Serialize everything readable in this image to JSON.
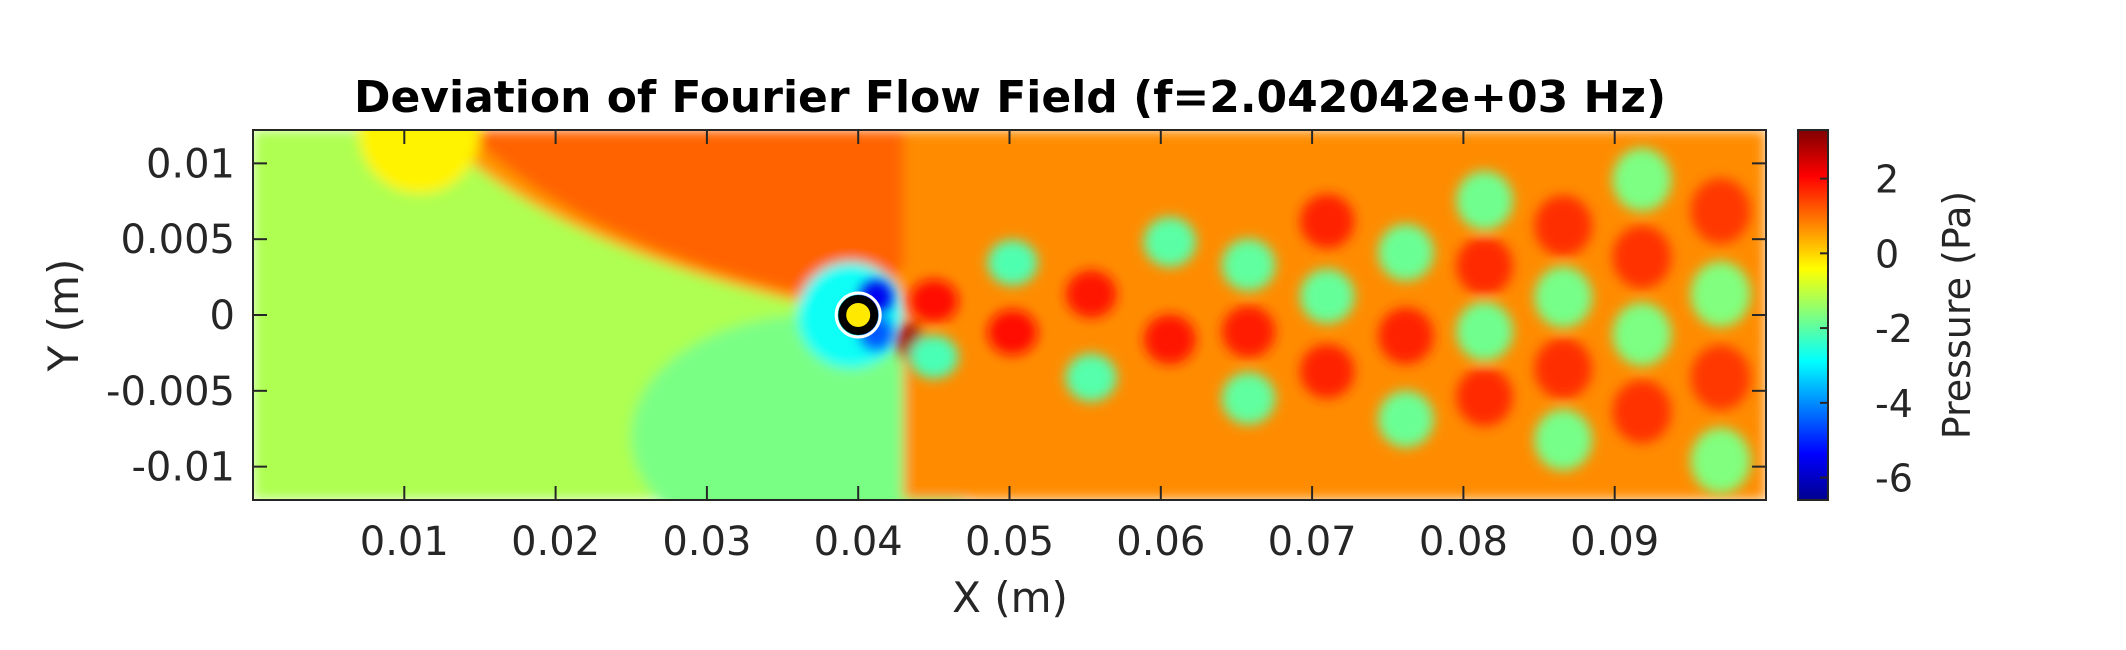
{
  "chart_data": {
    "type": "heatmap",
    "title": "Deviation of Fourier Flow Field (f=2.042042e+03 Hz)",
    "xlabel": "X (m)",
    "ylabel": "Y (m)",
    "xlim": [
      0,
      0.1
    ],
    "ylim": [
      -0.0122,
      0.0122
    ],
    "x_ticks": [
      0.01,
      0.02,
      0.03,
      0.04,
      0.05,
      0.06,
      0.07,
      0.08,
      0.09
    ],
    "x_tick_labels": [
      "0.01",
      "0.02",
      "0.03",
      "0.04",
      "0.05",
      "0.06",
      "0.07",
      "0.08",
      "0.09"
    ],
    "y_ticks": [
      0.01,
      0.005,
      0,
      -0.005,
      -0.01
    ],
    "y_tick_labels": [
      "0.01",
      "0.005",
      "0",
      "-0.005",
      "-0.01"
    ],
    "colorbar": {
      "label": "Pressure (Pa)",
      "clim": [
        -6.6,
        3.3
      ],
      "ticks": [
        2,
        0,
        -2,
        -4,
        -6
      ],
      "tick_labels": [
        "2",
        "0",
        "-2",
        "-4",
        "-6"
      ],
      "colormap": "jet"
    },
    "cylinder": {
      "center_x": 0.04,
      "center_y": 0.0,
      "radius": 0.0011
    },
    "field_pattern": {
      "upstream_value": -1.2,
      "upper_wake_value": 1.1,
      "vortex_street_start_x": 0.043,
      "vortex_street_end_x": 0.1,
      "peak_positive": 3.0,
      "peak_negative": -5.5
    },
    "grid": false
  }
}
